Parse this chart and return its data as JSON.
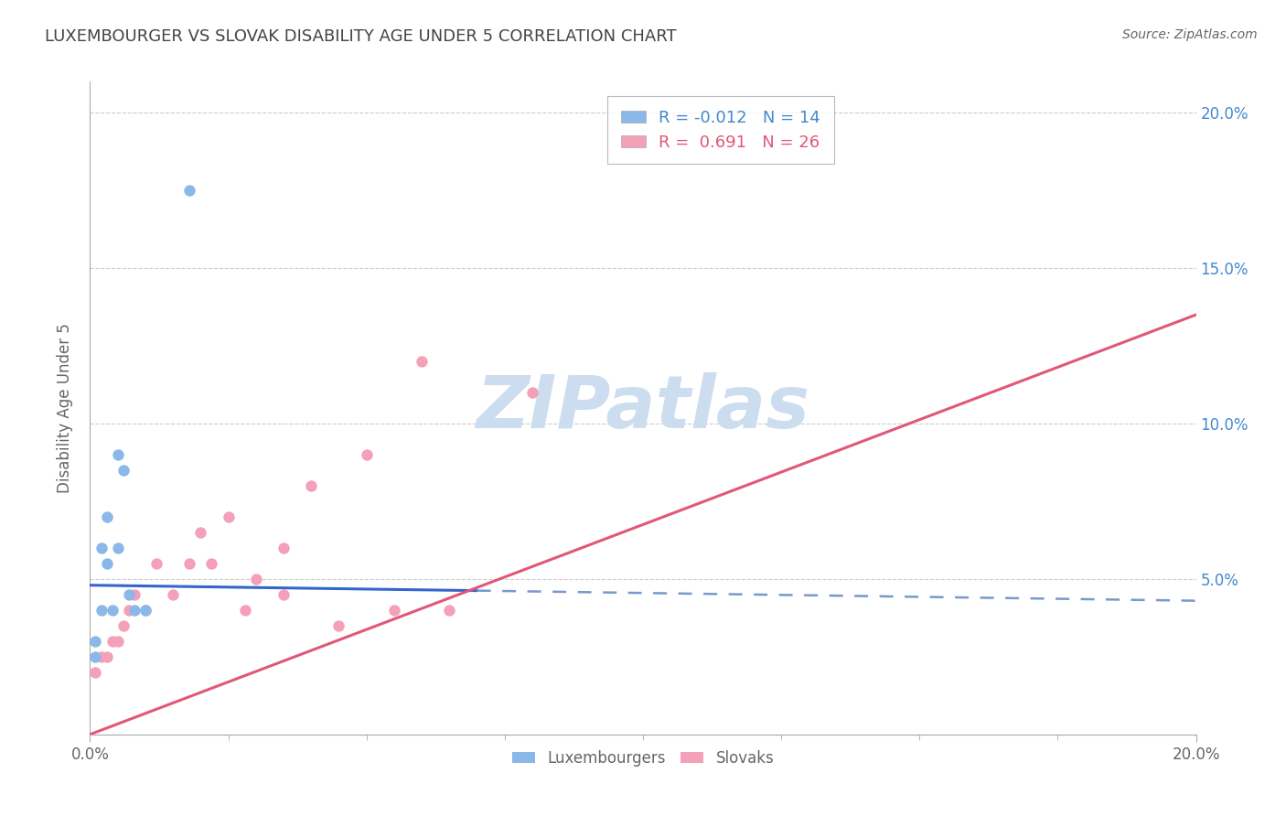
{
  "title": "LUXEMBOURGER VS SLOVAK DISABILITY AGE UNDER 5 CORRELATION CHART",
  "source": "Source: ZipAtlas.com",
  "ylabel": "Disability Age Under 5",
  "xlim": [
    0.0,
    0.2
  ],
  "ylim": [
    0.0,
    0.21
  ],
  "yticks": [
    0.05,
    0.1,
    0.15,
    0.2
  ],
  "ytick_labels": [
    "5.0%",
    "10.0%",
    "15.0%",
    "20.0%"
  ],
  "xtick_positions": [
    0.0,
    0.2
  ],
  "xtick_labels": [
    "0.0%",
    "20.0%"
  ],
  "lux_color": "#8ab8e8",
  "slovak_color": "#f4a0b8",
  "lux_line_color": "#3366cc",
  "lux_line_dash_color": "#7799cc",
  "slovak_line_color": "#e05878",
  "lux_R": -0.012,
  "lux_N": 14,
  "slovak_R": 0.691,
  "slovak_N": 26,
  "lux_line_solid_end": 0.07,
  "lux_line_start_y": 0.048,
  "lux_line_end_y": 0.043,
  "slovak_line_start_y": 0.0,
  "slovak_line_end_y": 0.135,
  "lux_scatter_x": [
    0.001,
    0.001,
    0.002,
    0.002,
    0.003,
    0.003,
    0.004,
    0.005,
    0.005,
    0.006,
    0.007,
    0.008,
    0.01,
    0.018
  ],
  "lux_scatter_y": [
    0.025,
    0.03,
    0.04,
    0.06,
    0.055,
    0.07,
    0.04,
    0.06,
    0.09,
    0.085,
    0.045,
    0.04,
    0.04,
    0.175
  ],
  "slovak_scatter_x": [
    0.001,
    0.002,
    0.003,
    0.004,
    0.005,
    0.006,
    0.007,
    0.008,
    0.01,
    0.012,
    0.015,
    0.018,
    0.02,
    0.022,
    0.025,
    0.028,
    0.03,
    0.035,
    0.035,
    0.04,
    0.045,
    0.05,
    0.055,
    0.06,
    0.065,
    0.08
  ],
  "slovak_scatter_y": [
    0.02,
    0.025,
    0.025,
    0.03,
    0.03,
    0.035,
    0.04,
    0.045,
    0.04,
    0.055,
    0.045,
    0.055,
    0.065,
    0.055,
    0.07,
    0.04,
    0.05,
    0.06,
    0.045,
    0.08,
    0.035,
    0.09,
    0.04,
    0.12,
    0.04,
    0.11
  ],
  "background_color": "#ffffff",
  "grid_color": "#cccccc",
  "title_color": "#444444",
  "axis_color": "#666666",
  "right_axis_color": "#4488cc",
  "watermark_color": "#ccddf0"
}
